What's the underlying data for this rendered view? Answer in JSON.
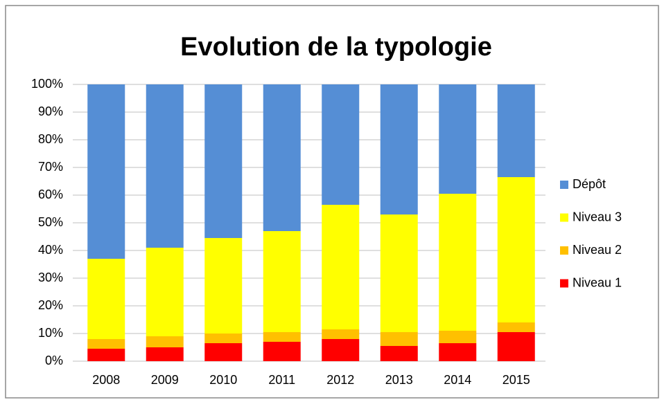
{
  "chart_data": {
    "type": "stacked_bar",
    "title": "Evolution de la typologie",
    "categories": [
      "2008",
      "2009",
      "2010",
      "2011",
      "2012",
      "2013",
      "2014",
      "2015"
    ],
    "series": [
      {
        "name": "Niveau 1",
        "color": "#ff0000",
        "values": [
          4.5,
          5,
          6.5,
          7,
          8,
          5.5,
          6.5,
          10.5
        ]
      },
      {
        "name": "Niveau 2",
        "color": "#ffc000",
        "values": [
          3.5,
          4,
          3.5,
          3.5,
          3.5,
          5,
          4.5,
          3.5
        ]
      },
      {
        "name": "Niveau 3",
        "color": "#ffff00",
        "values": [
          29,
          32,
          34.5,
          36.5,
          45,
          42.5,
          49.5,
          52.5
        ]
      },
      {
        "name": "Dépôt",
        "color": "#558ed5",
        "values": [
          63,
          59,
          55.5,
          53,
          43.5,
          47,
          39.5,
          33.5
        ]
      }
    ],
    "ylim": [
      0,
      100
    ],
    "yticks": [
      {
        "value": 0,
        "label": "0%"
      },
      {
        "value": 10,
        "label": "10%"
      },
      {
        "value": 20,
        "label": "20%"
      },
      {
        "value": 30,
        "label": "30%"
      },
      {
        "value": 40,
        "label": "40%"
      },
      {
        "value": 50,
        "label": "50%"
      },
      {
        "value": 60,
        "label": "60%"
      },
      {
        "value": 70,
        "label": "70%"
      },
      {
        "value": 80,
        "label": "80%"
      },
      {
        "value": 90,
        "label": "90%"
      },
      {
        "value": 100,
        "label": "100%"
      }
    ],
    "grid": true,
    "legend": "right"
  }
}
